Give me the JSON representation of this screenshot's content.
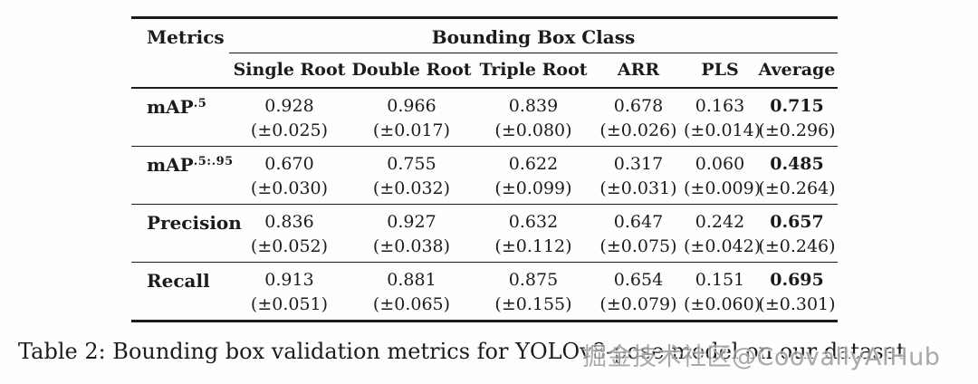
{
  "table": {
    "header": {
      "metrics_label": "Metrics",
      "group_label": "Bounding Box Class",
      "columns": [
        "Single Root",
        "Double Root",
        "Triple Root",
        "ARR",
        "PLS",
        "Average"
      ]
    },
    "rows": [
      {
        "label_base": "mAP",
        "label_sup": ".5",
        "values": [
          {
            "v": "0.928",
            "e": "(±0.025)"
          },
          {
            "v": "0.966",
            "e": "(±0.017)"
          },
          {
            "v": "0.839",
            "e": "(±0.080)"
          },
          {
            "v": "0.678",
            "e": "(±0.026)"
          },
          {
            "v": "0.163",
            "e": "(±0.014)"
          },
          {
            "v": "0.715",
            "e": "(±0.296)"
          }
        ]
      },
      {
        "label_base": "mAP",
        "label_sup": ".5:.95",
        "values": [
          {
            "v": "0.670",
            "e": "(±0.030)"
          },
          {
            "v": "0.755",
            "e": "(±0.032)"
          },
          {
            "v": "0.622",
            "e": "(±0.099)"
          },
          {
            "v": "0.317",
            "e": "(±0.031)"
          },
          {
            "v": "0.060",
            "e": "(±0.009)"
          },
          {
            "v": "0.485",
            "e": "(±0.264)"
          }
        ]
      },
      {
        "label_base": "Precision",
        "label_sup": "",
        "values": [
          {
            "v": "0.836",
            "e": "(±0.052)"
          },
          {
            "v": "0.927",
            "e": "(±0.038)"
          },
          {
            "v": "0.632",
            "e": "(±0.112)"
          },
          {
            "v": "0.647",
            "e": "(±0.075)"
          },
          {
            "v": "0.242",
            "e": "(±0.042)"
          },
          {
            "v": "0.657",
            "e": "(±0.246)"
          }
        ]
      },
      {
        "label_base": "Recall",
        "label_sup": "",
        "values": [
          {
            "v": "0.913",
            "e": "(±0.051)"
          },
          {
            "v": "0.881",
            "e": "(±0.065)"
          },
          {
            "v": "0.875",
            "e": "(±0.155)"
          },
          {
            "v": "0.654",
            "e": "(±0.079)"
          },
          {
            "v": "0.151",
            "e": "(±0.060)"
          },
          {
            "v": "0.695",
            "e": "(±0.301)"
          }
        ]
      }
    ]
  },
  "caption": "Table 2: Bounding box validation metrics for YOLOv8-pose model on our dataset",
  "watermark": "掘金技术社区@CoovallyAIHub",
  "colors": {
    "background": "#fefefe",
    "text": "#1b1b1b",
    "rule": "#1b1b1b",
    "watermark": "#949494"
  }
}
